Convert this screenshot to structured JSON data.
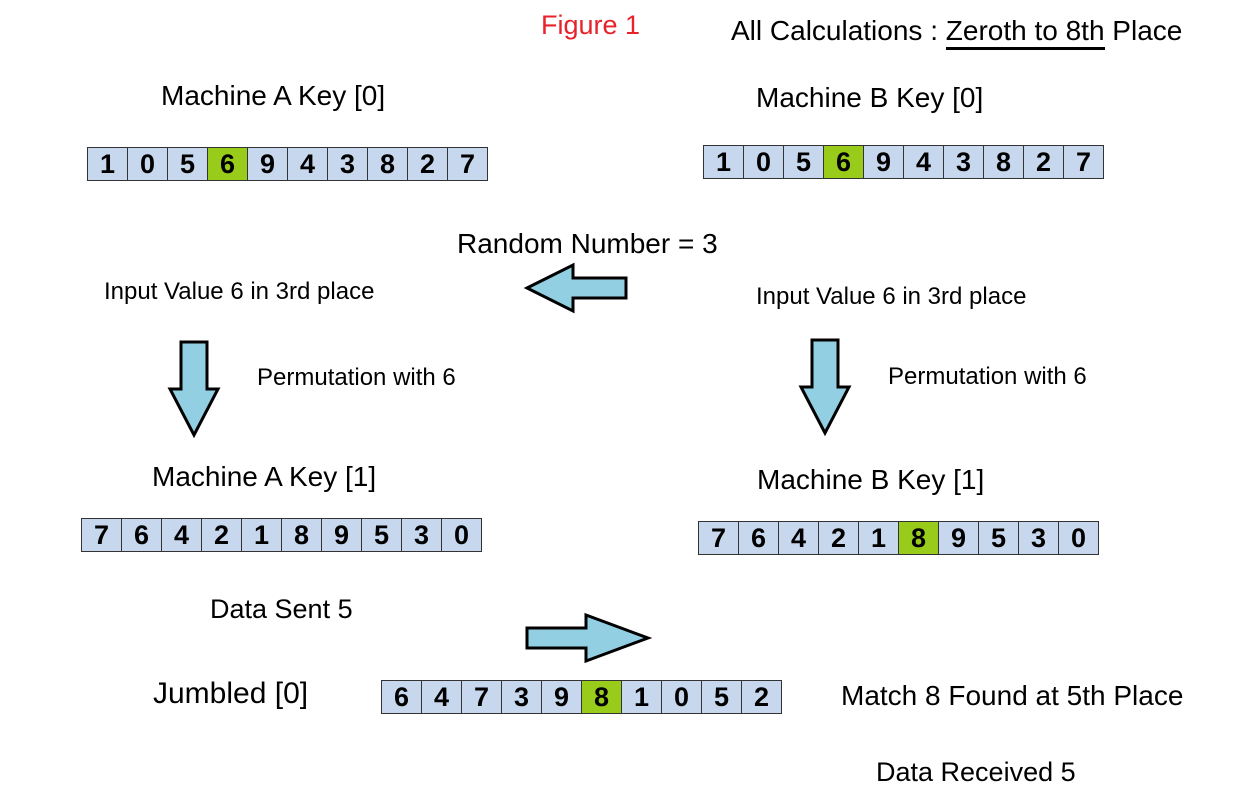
{
  "header": {
    "figure_label": "Figure 1",
    "calc_prefix": "All Calculations : ",
    "calc_underlined": "Zeroth to 8th",
    "calc_suffix": " Place",
    "figure_color": "#e8222a"
  },
  "machine_a_key0": {
    "title": "Machine A Key [0]",
    "cells": [
      "1",
      "0",
      "5",
      "6",
      "9",
      "4",
      "3",
      "8",
      "2",
      "7"
    ],
    "highlight": 3
  },
  "machine_b_key0": {
    "title": "Machine B Key [0]",
    "cells": [
      "1",
      "0",
      "5",
      "6",
      "9",
      "4",
      "3",
      "8",
      "2",
      "7"
    ],
    "highlight": 3
  },
  "random_number": "Random Number = 3",
  "input_a": "Input Value 6 in 3rd place",
  "input_b": "Input Value 6 in 3rd place",
  "permutation_a": "Permutation with 6",
  "permutation_b": "Permutation with 6",
  "machine_a_key1": {
    "title": "Machine A Key [1]",
    "cells": [
      "7",
      "6",
      "4",
      "2",
      "1",
      "8",
      "9",
      "5",
      "3",
      "0"
    ],
    "highlight": -1
  },
  "machine_b_key1": {
    "title": "Machine B Key [1]",
    "cells": [
      "7",
      "6",
      "4",
      "2",
      "1",
      "8",
      "9",
      "5",
      "3",
      "0"
    ],
    "highlight": 5
  },
  "data_sent": "Data Sent 5",
  "jumbled": {
    "title": "Jumbled [0]",
    "cells": [
      "6",
      "4",
      "7",
      "3",
      "9",
      "8",
      "1",
      "0",
      "5",
      "2"
    ],
    "highlight": 5
  },
  "match_found": "Match 8 Found at 5th Place",
  "data_received": "Data Received 5",
  "colors": {
    "cell": "#c6d7ee",
    "highlight": "#99cc1a",
    "arrow": "#93cfe3"
  }
}
